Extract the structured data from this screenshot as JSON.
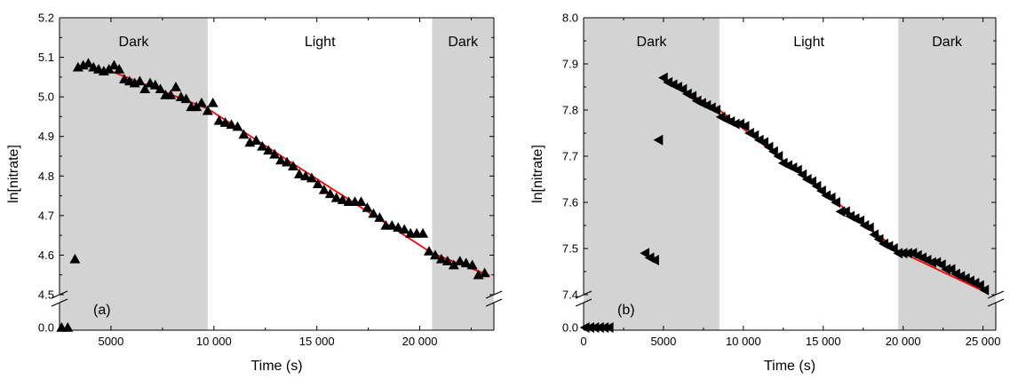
{
  "chart_data": [
    {
      "type": "scatter",
      "panel_label": "(a)",
      "xlabel": "Time (s)",
      "ylabel": "ln[nitrate]",
      "xlim": [
        2500,
        23600
      ],
      "ylim_main": [
        4.5,
        5.2
      ],
      "axis_break_value": 0.0,
      "y_break_between": [
        0.0,
        4.5
      ],
      "xticks": [
        {
          "value": 5000,
          "label": "5000"
        },
        {
          "value": 10000,
          "label": "10 000"
        },
        {
          "value": 15000,
          "label": "15 000"
        },
        {
          "value": 20000,
          "label": "20 000"
        }
      ],
      "yticks": [
        {
          "value": 4.5,
          "label": "4.5"
        },
        {
          "value": 4.6,
          "label": "4.6"
        },
        {
          "value": 4.7,
          "label": "4.7"
        },
        {
          "value": 4.8,
          "label": "4.8"
        },
        {
          "value": 4.9,
          "label": "4.9"
        },
        {
          "value": 5.0,
          "label": "5.0"
        },
        {
          "value": 5.1,
          "label": "5.1"
        },
        {
          "value": 5.2,
          "label": "5.2"
        }
      ],
      "break_tick": {
        "value": 0.0,
        "label": "0.0"
      },
      "regions": [
        {
          "label": "Dark",
          "shaded": true,
          "x0": 2500,
          "x1": 9700
        },
        {
          "label": "Light",
          "shaded": false,
          "x0": 9700,
          "x1": 20600
        },
        {
          "label": "Dark",
          "shaded": true,
          "x0": 20600,
          "x1": 23600
        }
      ],
      "marker": "triangle-up",
      "marker_color": "#000000",
      "shade_color": "#d3d3d3",
      "fit_color": "#ff0000",
      "points_broken_axis": [
        [
          2600,
          0.0
        ],
        [
          2900,
          0.0
        ]
      ],
      "points": [
        [
          3250,
          4.59
        ],
        [
          3400,
          5.075
        ],
        [
          3650,
          5.08
        ],
        [
          3900,
          5.085
        ],
        [
          4150,
          5.075
        ],
        [
          4400,
          5.07
        ],
        [
          4650,
          5.065
        ],
        [
          4900,
          5.07
        ],
        [
          5150,
          5.08
        ],
        [
          5400,
          5.07
        ],
        [
          5650,
          5.045
        ],
        [
          5900,
          5.04
        ],
        [
          6150,
          5.035
        ],
        [
          6400,
          5.04
        ],
        [
          6650,
          5.02
        ],
        [
          6900,
          5.035
        ],
        [
          7150,
          5.03
        ],
        [
          7400,
          5.02
        ],
        [
          7650,
          5.005
        ],
        [
          7900,
          5.005
        ],
        [
          8150,
          5.025
        ],
        [
          8400,
          5.0
        ],
        [
          8650,
          4.995
        ],
        [
          8900,
          4.975
        ],
        [
          9150,
          4.975
        ],
        [
          9400,
          4.985
        ],
        [
          9700,
          4.965
        ],
        [
          9950,
          4.985
        ],
        [
          10250,
          4.94
        ],
        [
          10550,
          4.935
        ],
        [
          10850,
          4.93
        ],
        [
          11150,
          4.925
        ],
        [
          11450,
          4.905
        ],
        [
          11750,
          4.885
        ],
        [
          12050,
          4.89
        ],
        [
          12350,
          4.875
        ],
        [
          12650,
          4.865
        ],
        [
          12950,
          4.855
        ],
        [
          13250,
          4.84
        ],
        [
          13550,
          4.835
        ],
        [
          13850,
          4.825
        ],
        [
          14150,
          4.805
        ],
        [
          14450,
          4.8
        ],
        [
          14750,
          4.795
        ],
        [
          15050,
          4.78
        ],
        [
          15350,
          4.765
        ],
        [
          15650,
          4.755
        ],
        [
          15950,
          4.745
        ],
        [
          16250,
          4.74
        ],
        [
          16550,
          4.735
        ],
        [
          16850,
          4.735
        ],
        [
          17150,
          4.735
        ],
        [
          17450,
          4.72
        ],
        [
          17750,
          4.705
        ],
        [
          18050,
          4.695
        ],
        [
          18350,
          4.675
        ],
        [
          18650,
          4.675
        ],
        [
          18950,
          4.67
        ],
        [
          19250,
          4.665
        ],
        [
          19550,
          4.655
        ],
        [
          19850,
          4.655
        ],
        [
          20150,
          4.655
        ],
        [
          20450,
          4.61
        ],
        [
          20750,
          4.6
        ],
        [
          21050,
          4.59
        ],
        [
          21350,
          4.585
        ],
        [
          21650,
          4.575
        ],
        [
          21950,
          4.585
        ],
        [
          22250,
          4.58
        ],
        [
          22550,
          4.575
        ],
        [
          22850,
          4.55
        ],
        [
          23150,
          4.555
        ]
      ],
      "fit": [
        [
          5000,
          5.065
        ],
        [
          9700,
          4.97
        ],
        [
          20600,
          4.605
        ],
        [
          23400,
          4.548
        ]
      ]
    },
    {
      "type": "scatter",
      "panel_label": "(b)",
      "xlabel": "Time (s)",
      "ylabel": "ln[nitrate]",
      "xlim": [
        0,
        25800
      ],
      "ylim_main": [
        7.4,
        8.0
      ],
      "axis_break_value": 0.0,
      "y_break_between": [
        0.0,
        7.4
      ],
      "xticks": [
        {
          "value": 0,
          "label": "0"
        },
        {
          "value": 5000,
          "label": "5000"
        },
        {
          "value": 10000,
          "label": "10 000"
        },
        {
          "value": 15000,
          "label": "15 000"
        },
        {
          "value": 20000,
          "label": "20 000"
        },
        {
          "value": 25000,
          "label": "25 000"
        }
      ],
      "yticks": [
        {
          "value": 7.4,
          "label": "7.4"
        },
        {
          "value": 7.5,
          "label": "7.5"
        },
        {
          "value": 7.6,
          "label": "7.6"
        },
        {
          "value": 7.7,
          "label": "7.7"
        },
        {
          "value": 7.8,
          "label": "7.8"
        },
        {
          "value": 7.9,
          "label": "7.9"
        },
        {
          "value": 8.0,
          "label": "8.0"
        }
      ],
      "break_tick": {
        "value": 0.0,
        "label": "0.0"
      },
      "regions": [
        {
          "label": "Dark",
          "shaded": true,
          "x0": 0,
          "x1": 8500
        },
        {
          "label": "Light",
          "shaded": false,
          "x0": 8500,
          "x1": 19700
        },
        {
          "label": "Dark",
          "shaded": true,
          "x0": 19700,
          "x1": 25800
        }
      ],
      "marker": "triangle-left",
      "marker_color": "#000000",
      "shade_color": "#d3d3d3",
      "fit_color": "#ff0000",
      "points_broken_axis": [
        [
          100,
          0.0
        ],
        [
          400,
          0.0
        ],
        [
          700,
          0.0
        ],
        [
          1000,
          0.0
        ],
        [
          1300,
          0.0
        ],
        [
          1600,
          0.0
        ]
      ],
      "points": [
        [
          3850,
          7.49
        ],
        [
          4150,
          7.48
        ],
        [
          4450,
          7.475
        ],
        [
          4700,
          7.735
        ],
        [
          5000,
          7.87
        ],
        [
          5300,
          7.86
        ],
        [
          5600,
          7.855
        ],
        [
          5900,
          7.85
        ],
        [
          6200,
          7.845
        ],
        [
          6500,
          7.835
        ],
        [
          6800,
          7.83
        ],
        [
          7100,
          7.82
        ],
        [
          7400,
          7.815
        ],
        [
          7700,
          7.81
        ],
        [
          8000,
          7.805
        ],
        [
          8300,
          7.8
        ],
        [
          8600,
          7.785
        ],
        [
          8900,
          7.78
        ],
        [
          9200,
          7.775
        ],
        [
          9500,
          7.77
        ],
        [
          9800,
          7.77
        ],
        [
          10100,
          7.765
        ],
        [
          10400,
          7.75
        ],
        [
          10700,
          7.745
        ],
        [
          11000,
          7.735
        ],
        [
          11300,
          7.73
        ],
        [
          11600,
          7.72
        ],
        [
          11900,
          7.71
        ],
        [
          12200,
          7.7
        ],
        [
          12500,
          7.685
        ],
        [
          12800,
          7.68
        ],
        [
          13100,
          7.675
        ],
        [
          13400,
          7.67
        ],
        [
          13700,
          7.66
        ],
        [
          14000,
          7.65
        ],
        [
          14300,
          7.645
        ],
        [
          14600,
          7.635
        ],
        [
          14900,
          7.625
        ],
        [
          15200,
          7.615
        ],
        [
          15500,
          7.61
        ],
        [
          15800,
          7.6
        ],
        [
          16100,
          7.58
        ],
        [
          16400,
          7.58
        ],
        [
          16700,
          7.57
        ],
        [
          17000,
          7.565
        ],
        [
          17300,
          7.56
        ],
        [
          17600,
          7.55
        ],
        [
          17900,
          7.545
        ],
        [
          18200,
          7.53
        ],
        [
          18500,
          7.52
        ],
        [
          18800,
          7.51
        ],
        [
          19100,
          7.505
        ],
        [
          19400,
          7.5
        ],
        [
          19700,
          7.49
        ],
        [
          20000,
          7.49
        ],
        [
          20300,
          7.49
        ],
        [
          20600,
          7.49
        ],
        [
          20900,
          7.485
        ],
        [
          21200,
          7.48
        ],
        [
          21500,
          7.475
        ],
        [
          21800,
          7.47
        ],
        [
          22100,
          7.47
        ],
        [
          22400,
          7.465
        ],
        [
          22700,
          7.455
        ],
        [
          23000,
          7.455
        ],
        [
          23300,
          7.445
        ],
        [
          23600,
          7.44
        ],
        [
          23900,
          7.435
        ],
        [
          24200,
          7.43
        ],
        [
          24500,
          7.425
        ],
        [
          24800,
          7.42
        ],
        [
          25100,
          7.41
        ]
      ],
      "fit": [
        [
          5000,
          7.865
        ],
        [
          8500,
          7.8
        ],
        [
          19700,
          7.495
        ],
        [
          25200,
          7.405
        ]
      ]
    }
  ]
}
